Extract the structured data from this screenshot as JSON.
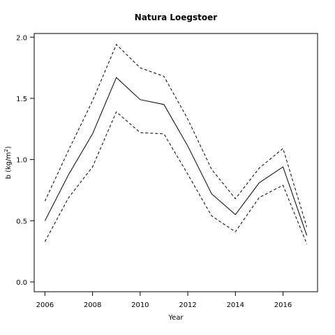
{
  "chart_data": {
    "type": "line",
    "title": "Natura Loegstoer",
    "xlabel": "Year",
    "ylabel": "b (kg/m²)",
    "ylabel_main": "b  (kg/m",
    "ylabel_sup": "2",
    "ylabel_close": ")",
    "x": [
      2006,
      2007,
      2008,
      2009,
      2010,
      2011,
      2012,
      2013,
      2014,
      2015,
      2016,
      2017
    ],
    "xlim": [
      2005.55,
      2017.45
    ],
    "ylim": [
      -0.08,
      2.03
    ],
    "xticks": [
      "2006",
      "2008",
      "2010",
      "2012",
      "2014",
      "2016"
    ],
    "xtick_values": [
      2006,
      2008,
      2010,
      2012,
      2014,
      2016
    ],
    "yticks": [
      "0.0",
      "0.5",
      "1.0",
      "1.5",
      "2.0"
    ],
    "ytick_values": [
      0,
      0.5,
      1,
      1.5,
      2
    ],
    "grid": false,
    "legend": "none",
    "series": [
      {
        "role": "estimate",
        "style": "solid",
        "values": [
          0.5,
          0.88,
          1.21,
          1.67,
          1.49,
          1.45,
          1.11,
          0.72,
          0.55,
          0.81,
          0.94,
          0.38
        ]
      },
      {
        "role": "upper",
        "style": "dashed",
        "values": [
          0.66,
          1.08,
          1.48,
          1.94,
          1.75,
          1.68,
          1.33,
          0.92,
          0.68,
          0.93,
          1.09,
          0.45
        ]
      },
      {
        "role": "lower",
        "style": "dashed",
        "values": [
          0.33,
          0.69,
          0.94,
          1.39,
          1.22,
          1.21,
          0.88,
          0.54,
          0.41,
          0.69,
          0.79,
          0.31
        ]
      }
    ],
    "line_color": "#000000"
  }
}
